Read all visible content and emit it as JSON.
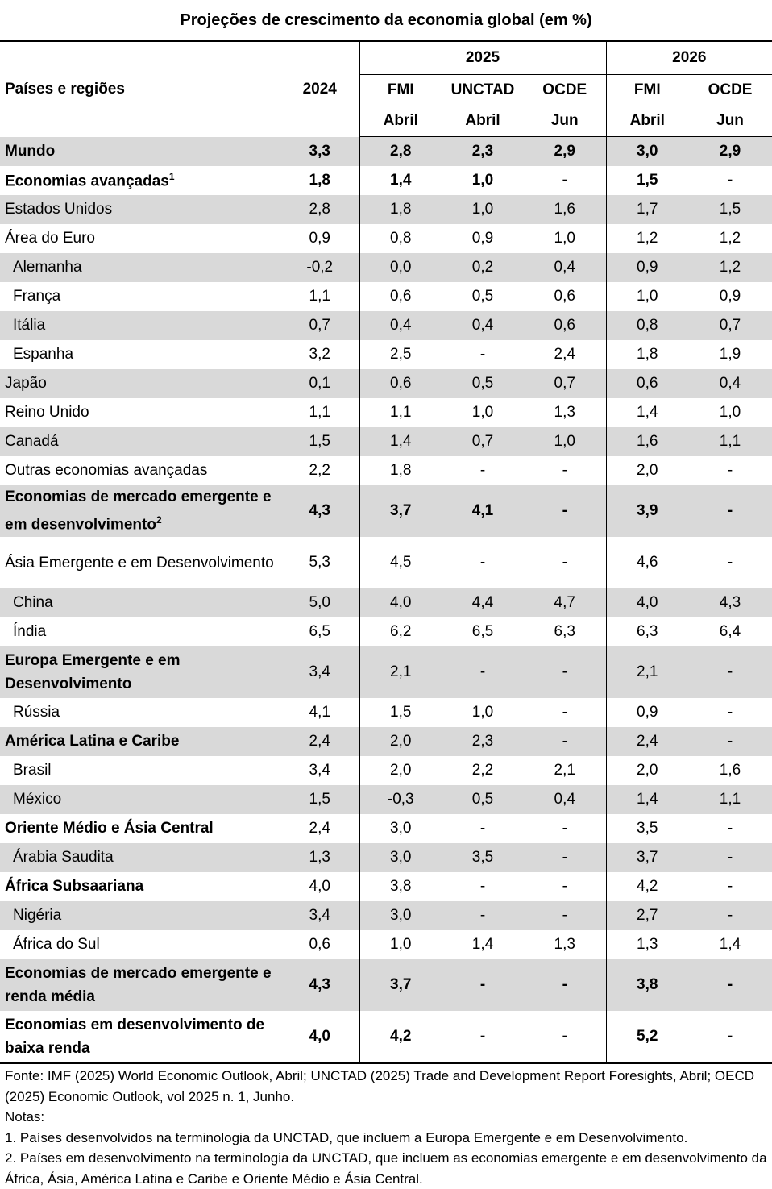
{
  "title": "Projeções de crescimento da economia global (em %)",
  "header": {
    "col_label": "Países e regiões",
    "y2024": "2024",
    "y2025": "2025",
    "y2026": "2026",
    "src": [
      "FMI",
      "UNCTAD",
      "OCDE",
      "FMI",
      "OCDE"
    ],
    "month": [
      "Abril",
      "Abril",
      "Jun",
      "Abril",
      "Jun"
    ]
  },
  "rows": [
    {
      "name": "Mundo",
      "vals": [
        "3,3",
        "2,8",
        "2,3",
        "2,9",
        "3,0",
        "2,9"
      ],
      "bold": true,
      "shade": true
    },
    {
      "name": "Economias avançadas",
      "sup": "1",
      "vals": [
        "1,8",
        "1,4",
        "1,0",
        "-",
        "1,5",
        "-"
      ],
      "bold": true
    },
    {
      "name": "Estados Unidos",
      "vals": [
        "2,8",
        "1,8",
        "1,0",
        "1,6",
        "1,7",
        "1,5"
      ],
      "shade": true
    },
    {
      "name": "Área do Euro",
      "vals": [
        "0,9",
        "0,8",
        "0,9",
        "1,0",
        "1,2",
        "1,2"
      ]
    },
    {
      "name": "Alemanha",
      "vals": [
        "-0,2",
        "0,0",
        "0,2",
        "0,4",
        "0,9",
        "1,2"
      ],
      "shade": true,
      "indent": true
    },
    {
      "name": "França",
      "vals": [
        "1,1",
        "0,6",
        "0,5",
        "0,6",
        "1,0",
        "0,9"
      ],
      "indent": true
    },
    {
      "name": "Itália",
      "vals": [
        "0,7",
        "0,4",
        "0,4",
        "0,6",
        "0,8",
        "0,7"
      ],
      "shade": true,
      "indent": true
    },
    {
      "name": "Espanha",
      "vals": [
        "3,2",
        "2,5",
        "-",
        "2,4",
        "1,8",
        "1,9"
      ],
      "indent": true
    },
    {
      "name": "Japão",
      "vals": [
        "0,1",
        "0,6",
        "0,5",
        "0,7",
        "0,6",
        "0,4"
      ],
      "shade": true
    },
    {
      "name": "Reino Unido",
      "vals": [
        "1,1",
        "1,1",
        "1,0",
        "1,3",
        "1,4",
        "1,0"
      ]
    },
    {
      "name": "Canadá",
      "vals": [
        "1,5",
        "1,4",
        "0,7",
        "1,0",
        "1,6",
        "1,1"
      ],
      "shade": true
    },
    {
      "name": "Outras economias avançadas",
      "vals": [
        "2,2",
        "1,8",
        "-",
        "-",
        "2,0",
        "-"
      ]
    },
    {
      "name": "Economias de mercado emergente e em desenvolvimento",
      "sup": "2",
      "vals": [
        "4,3",
        "3,7",
        "4,1",
        "-",
        "3,9",
        "-"
      ],
      "bold": true,
      "shade": true,
      "two": true
    },
    {
      "name": "Ásia Emergente e em Desenvolvimento",
      "vals": [
        "5,3",
        "4,5",
        "-",
        "-",
        "4,6",
        "-"
      ],
      "two": true
    },
    {
      "name": "China",
      "vals": [
        "5,0",
        "4,0",
        "4,4",
        "4,7",
        "4,0",
        "4,3"
      ],
      "shade": true,
      "indent": true
    },
    {
      "name": "Índia",
      "vals": [
        "6,5",
        "6,2",
        "6,5",
        "6,3",
        "6,3",
        "6,4"
      ],
      "indent": true
    },
    {
      "name": "Europa Emergente e em Desenvolvimento",
      "vals": [
        "3,4",
        "2,1",
        "-",
        "-",
        "2,1",
        "-"
      ],
      "bold_name": true,
      "shade": true,
      "two": true
    },
    {
      "name": "Rússia",
      "vals": [
        "4,1",
        "1,5",
        "1,0",
        "-",
        "0,9",
        "-"
      ],
      "indent": true
    },
    {
      "name": "América Latina e Caribe",
      "vals": [
        "2,4",
        "2,0",
        "2,3",
        "-",
        "2,4",
        "-"
      ],
      "bold_name": true,
      "shade": true
    },
    {
      "name": "Brasil",
      "vals": [
        "3,4",
        "2,0",
        "2,2",
        "2,1",
        "2,0",
        "1,6"
      ],
      "indent": true
    },
    {
      "name": "México",
      "vals": [
        "1,5",
        "-0,3",
        "0,5",
        "0,4",
        "1,4",
        "1,1"
      ],
      "shade": true,
      "indent": true
    },
    {
      "name": "Oriente Médio e Ásia Central",
      "vals": [
        "2,4",
        "3,0",
        "-",
        "-",
        "3,5",
        "-"
      ],
      "bold_name": true
    },
    {
      "name": "Árabia Saudita",
      "vals": [
        "1,3",
        "3,0",
        "3,5",
        "-",
        "3,7",
        "-"
      ],
      "shade": true,
      "indent": true
    },
    {
      "name": "África Subsaariana",
      "vals": [
        "4,0",
        "3,8",
        "-",
        "-",
        "4,2",
        "-"
      ],
      "bold_name": true
    },
    {
      "name": "Nigéria",
      "vals": [
        "3,4",
        "3,0",
        "-",
        "-",
        "2,7",
        "-"
      ],
      "shade": true,
      "indent": true
    },
    {
      "name": "África do Sul",
      "vals": [
        "0,6",
        "1,0",
        "1,4",
        "1,3",
        "1,3",
        "1,4"
      ],
      "indent": true
    },
    {
      "name": "Economias de mercado emergente e renda média",
      "vals": [
        "4,3",
        "3,7",
        "-",
        "-",
        "3,8",
        "-"
      ],
      "bold": true,
      "shade": true,
      "two": true
    },
    {
      "name": "Economias em desenvolvimento de baixa renda",
      "vals": [
        "4,0",
        "4,2",
        "-",
        "-",
        "5,2",
        "-"
      ],
      "bold": true,
      "two": true
    }
  ],
  "notes": [
    "Fonte: IMF (2025) World Economic Outlook, Abril; UNCTAD (2025) Trade and Development Report Foresights, Abril; OECD (2025) Economic Outlook, vol 2025 n. 1, Junho.",
    "Notas:",
    "1. Países desenvolvidos na terminologia da UNCTAD, que incluem a Europa Emergente e em Desenvolvimento.",
    "2. Países em desenvolvimento na terminologia da UNCTAD, que incluem as economias emergente e em desenvolvimento da África, Ásia, América Latina e Caribe e Oriente Médio e Ásia Central."
  ]
}
